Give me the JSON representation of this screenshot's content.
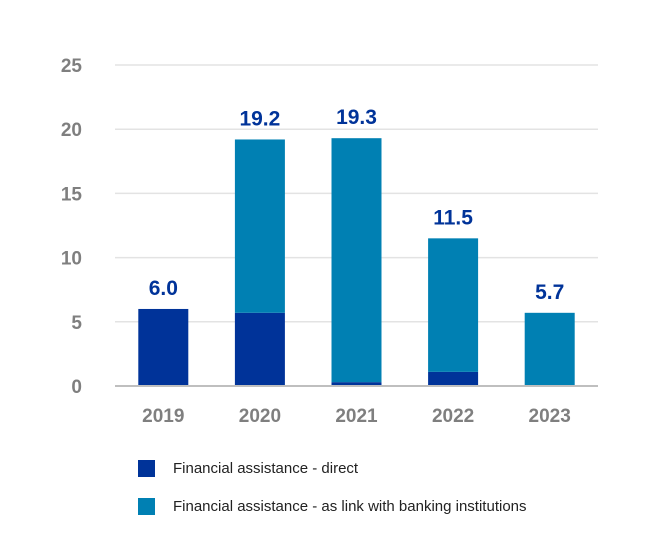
{
  "chart_data": {
    "type": "bar",
    "stacked": true,
    "categories": [
      "2019",
      "2020",
      "2021",
      "2022",
      "2023"
    ],
    "series": [
      {
        "name": "Financial assistance - direct",
        "values": [
          6.0,
          5.7,
          0.3,
          1.1,
          0.0
        ],
        "color": "#003399"
      },
      {
        "name": "Financial assistance - as link with banking institutions",
        "values": [
          0.0,
          13.5,
          19.0,
          10.4,
          5.7
        ],
        "color": "#0080B3"
      }
    ],
    "totals": [
      "6.0",
      "19.2",
      "19.3",
      "11.5",
      "5.7"
    ],
    "yticks": [
      "0",
      "5",
      "10",
      "15",
      "20",
      "25"
    ],
    "ylim": [
      0,
      25
    ],
    "grid": true,
    "legend_position": "bottom",
    "label_color": "#003399",
    "tick_color": "#7F7F7F"
  }
}
